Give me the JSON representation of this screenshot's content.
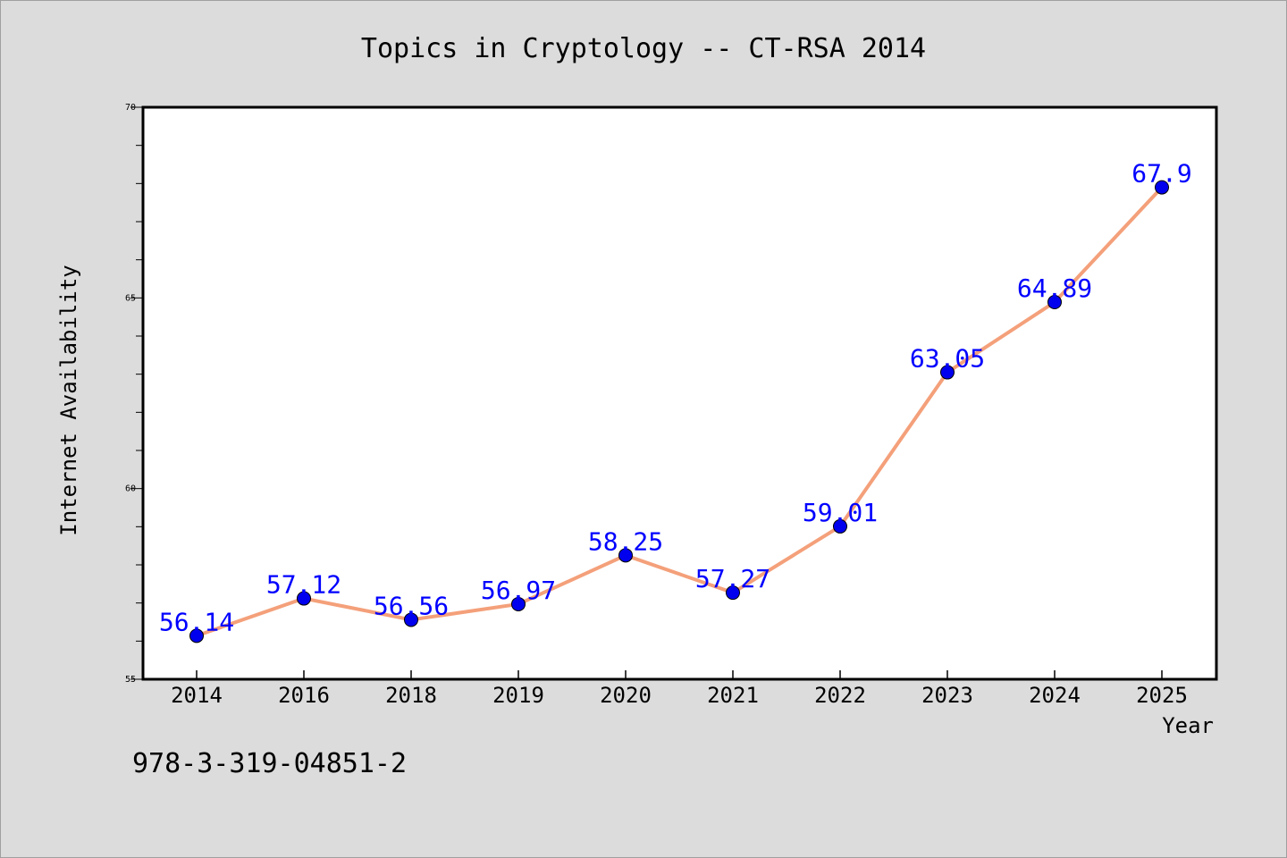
{
  "chart_data": {
    "type": "line",
    "title": "Topics in Cryptology -- CT-RSA 2014",
    "xlabel": "Year",
    "ylabel": "Internet Availability",
    "categories": [
      "2014",
      "2016",
      "2018",
      "2019",
      "2020",
      "2021",
      "2022",
      "2023",
      "2024",
      "2025"
    ],
    "series": [
      {
        "values": [
          56.14,
          57.12,
          56.56,
          56.97,
          58.25,
          57.27,
          59.01,
          63.05,
          64.89,
          67.9
        ],
        "labels": [
          "56.14",
          "57.12",
          "56.56",
          "56.97",
          "58.25",
          "57.27",
          "59.01",
          "63.05",
          "64.89",
          "67.9"
        ]
      }
    ],
    "ylim": [
      55,
      70
    ],
    "yticks": [
      55,
      60,
      65,
      70
    ],
    "grid": false,
    "colors": {
      "line": "#f4a07a",
      "marker": "#0000ee",
      "label": "#0000ff",
      "background": "#dcdcdc",
      "plot_background": "#ffffff"
    }
  },
  "footer_text": "978-3-319-04851-2"
}
